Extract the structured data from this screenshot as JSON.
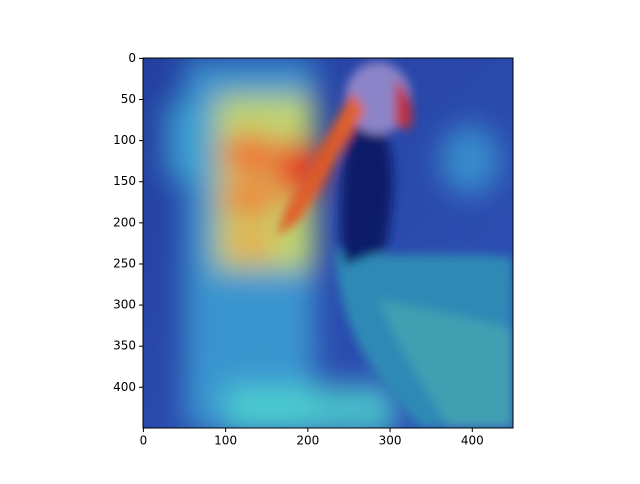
{
  "chart_data": {
    "type": "image",
    "xlim": [
      -0.5,
      449.5
    ],
    "ylim": [
      449.5,
      -0.5
    ],
    "xticks": [
      0,
      100,
      200,
      300,
      400
    ],
    "yticks": [
      0,
      50,
      100,
      150,
      200,
      250,
      300,
      350,
      400
    ]
  }
}
